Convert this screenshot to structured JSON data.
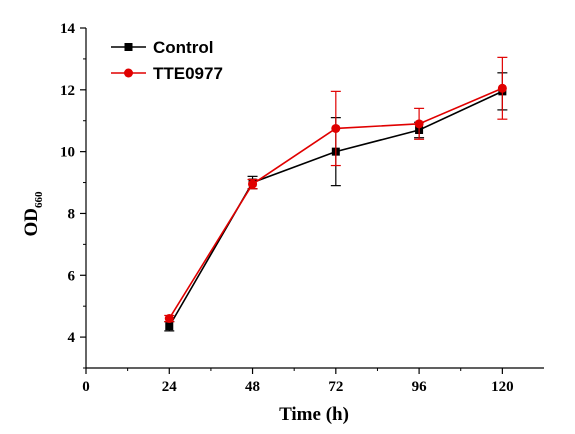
{
  "chart_data": {
    "type": "line",
    "title": "",
    "xlabel": "Time (h)",
    "ylabel": {
      "main": "OD",
      "subscript": "660"
    },
    "x": [
      24,
      48,
      72,
      96,
      120
    ],
    "xticks": [
      "0",
      "24",
      "48",
      "72",
      "96",
      "120"
    ],
    "xtick_values": [
      0,
      24,
      48,
      72,
      96,
      120
    ],
    "yticks": [
      "4",
      "6",
      "8",
      "10",
      "12",
      "14"
    ],
    "ytick_values": [
      4,
      6,
      8,
      10,
      12,
      14
    ],
    "xlim": [
      0,
      132
    ],
    "ylim": [
      3,
      14
    ],
    "grid": false,
    "legend_position": "top-left",
    "series": [
      {
        "name": "Control",
        "color": "#000000",
        "marker": "square",
        "values": [
          4.35,
          9.0,
          10.0,
          10.7,
          11.95
        ],
        "errors": [
          0.15,
          0.2,
          1.1,
          0.25,
          0.6
        ]
      },
      {
        "name": "TTE0977",
        "color": "#e00000",
        "marker": "circle",
        "values": [
          4.6,
          8.95,
          10.75,
          10.9,
          12.05
        ],
        "errors": [
          0.1,
          0.15,
          1.2,
          0.5,
          1.0
        ]
      }
    ]
  }
}
